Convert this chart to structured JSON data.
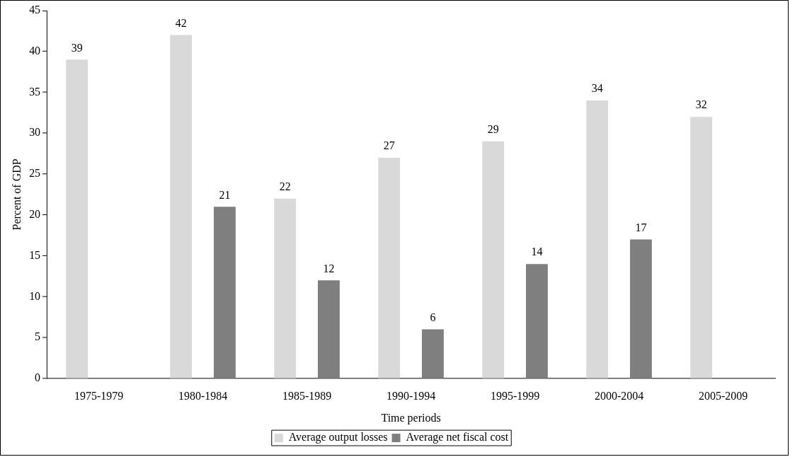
{
  "chart_data": {
    "type": "bar",
    "xlabel": "Time periods",
    "ylabel": "Percent of GDP",
    "categories": [
      "1975-1979",
      "1980-1984",
      "1985-1989",
      "1990-1994",
      "1995-1999",
      "2000-2004",
      "2005-2009"
    ],
    "series": [
      {
        "name": "Average output losses",
        "color": "#d9d9d9",
        "values": [
          39,
          42,
          22,
          27,
          29,
          34,
          32
        ]
      },
      {
        "name": "Average net fiscal cost",
        "color": "#7f7f7f",
        "values": [
          null,
          21,
          12,
          6,
          14,
          17,
          null
        ]
      }
    ],
    "ylim": [
      0,
      45
    ],
    "yticks": [
      0,
      5,
      10,
      15,
      20,
      25,
      30,
      35,
      40,
      45
    ],
    "grid": false,
    "legend": "bottom",
    "data_labels": true
  }
}
